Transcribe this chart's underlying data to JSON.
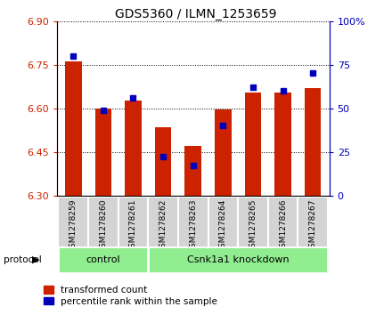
{
  "title": "GDS5360 / ILMN_1253659",
  "samples": [
    "GSM1278259",
    "GSM1278260",
    "GSM1278261",
    "GSM1278262",
    "GSM1278263",
    "GSM1278264",
    "GSM1278265",
    "GSM1278266",
    "GSM1278267"
  ],
  "red_values": [
    6.76,
    6.6,
    6.625,
    6.535,
    6.47,
    6.595,
    6.655,
    6.655,
    6.67
  ],
  "blue_percentiles": [
    80,
    49,
    56,
    22,
    17,
    40,
    62,
    60,
    70
  ],
  "ylim_left": [
    6.3,
    6.9
  ],
  "ylim_right": [
    0,
    100
  ],
  "yticks_left": [
    6.3,
    6.45,
    6.6,
    6.75,
    6.9
  ],
  "yticks_right": [
    0,
    25,
    50,
    75,
    100
  ],
  "bar_color": "#cc2200",
  "dot_color": "#0000bb",
  "bar_width": 0.55,
  "control_label": "control",
  "knockdown_label": "Csnk1a1 knockdown",
  "protocol_label": "protocol",
  "control_indices": [
    0,
    1,
    2
  ],
  "knockdown_indices": [
    3,
    4,
    5,
    6,
    7,
    8
  ],
  "legend_red": "transformed count",
  "legend_blue": "percentile rank within the sample",
  "group_box_color": "#90ee90",
  "tick_label_color_left": "#cc2200",
  "tick_label_color_right": "#0000bb",
  "bg_color": "#ffffff"
}
